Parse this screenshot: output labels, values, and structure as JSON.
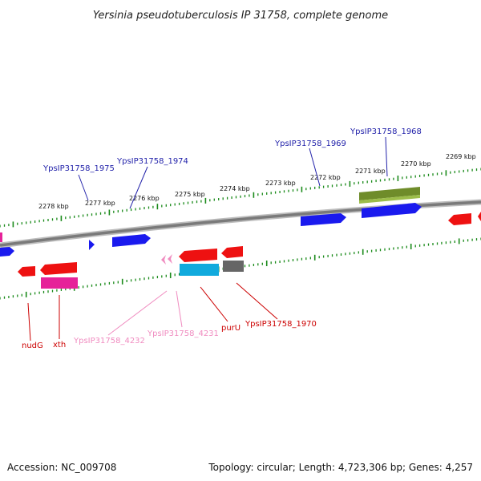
{
  "title": "Yersinia pseudotuberculosis IP 31758, complete genome",
  "colors": {
    "backbone": "#8c8c8c",
    "tick": "#1a8a1a",
    "red": "#ee1111",
    "blue": "#1a1aee",
    "magenta": "#e62299",
    "olive": "#6f8c2a",
    "cyan": "#11aadd",
    "gray": "#666666",
    "pink": "#f08cc0",
    "label_blue": "#2222aa",
    "label_red": "#cc0000",
    "label_pink": "#f08cc0"
  },
  "ticks": [
    {
      "label": "2278 kbp"
    },
    {
      "label": "2277 kbp"
    },
    {
      "label": "2276 kbp"
    },
    {
      "label": "2275 kbp"
    },
    {
      "label": "2274 kbp"
    },
    {
      "label": "2273 kbp"
    },
    {
      "label": "2272 kbp"
    },
    {
      "label": "2271 kbp"
    },
    {
      "label": "2270 kbp"
    },
    {
      "label": "2269 kbp"
    }
  ],
  "gene_labels": [
    {
      "text": "YpsIP31758_1975",
      "color": "label_blue"
    },
    {
      "text": "YpsIP31758_1974",
      "color": "label_blue"
    },
    {
      "text": "YpsIP31758_1969",
      "color": "label_blue"
    },
    {
      "text": "YpsIP31758_1968",
      "color": "label_blue"
    },
    {
      "text": "nudG",
      "color": "label_red"
    },
    {
      "text": "xth",
      "color": "label_red"
    },
    {
      "text": "YpsIP31758_4232",
      "color": "label_pink"
    },
    {
      "text": "YpsIP31758_4231",
      "color": "label_pink"
    },
    {
      "text": "purU",
      "color": "label_red"
    },
    {
      "text": "YpsIP31758_1970",
      "color": "label_red"
    }
  ],
  "footer": {
    "accession": "Accession: NC_009708",
    "topology": "Topology: circular; Length: 4,723,306 bp; Genes: 4,257"
  }
}
